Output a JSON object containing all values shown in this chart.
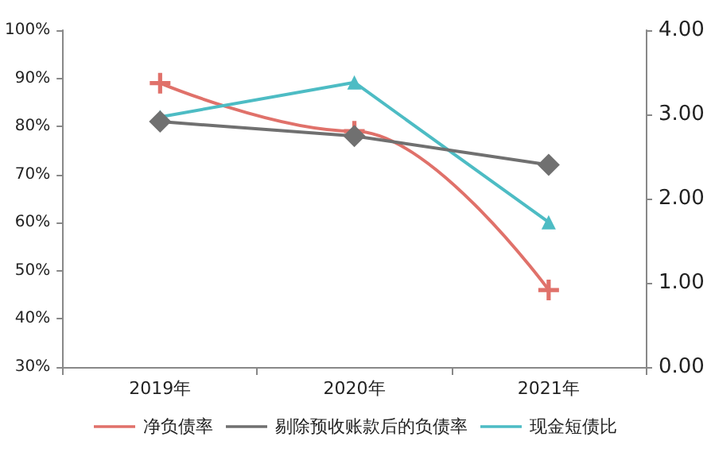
{
  "chart_data": {
    "type": "line",
    "categories": [
      "2019年",
      "2020年",
      "2021年"
    ],
    "series": [
      {
        "name": "净负债率",
        "color": "#e0716a",
        "marker": "cross",
        "values": [
          89,
          79,
          46
        ]
      },
      {
        "name": "剔除预收账款后的负债率",
        "color": "#707070",
        "marker": "diamond",
        "values": [
          81,
          78,
          72
        ]
      },
      {
        "name": "现金短债比",
        "color": "#4dbcc4",
        "marker": "triangle",
        "axis": "y2",
        "values": [
          2.97,
          3.38,
          1.72
        ]
      }
    ],
    "ylim": [
      30,
      100
    ],
    "yticks": [
      {
        "value": 30,
        "label": "30%"
      },
      {
        "value": 40,
        "label": "40%"
      },
      {
        "value": 50,
        "label": "50%"
      },
      {
        "value": 60,
        "label": "60%"
      },
      {
        "value": 70,
        "label": "70%"
      },
      {
        "value": 80,
        "label": "80%"
      },
      {
        "value": 90,
        "label": "90%"
      },
      {
        "value": 100,
        "label": "100%"
      }
    ],
    "y2lim": [
      0,
      4
    ],
    "y2ticks": [
      {
        "value": 0,
        "label": "0.00"
      },
      {
        "value": 1,
        "label": "1.00"
      },
      {
        "value": 2,
        "label": "2.00"
      },
      {
        "value": 3,
        "label": "3.00"
      },
      {
        "value": 4,
        "label": "4.00"
      }
    ],
    "grid": false,
    "legend": "bottom"
  }
}
